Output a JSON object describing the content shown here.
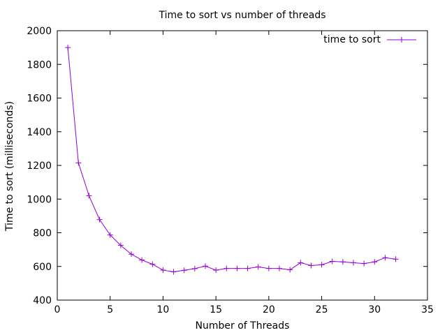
{
  "chart_data": {
    "type": "line",
    "title": "Time to sort vs number of threads",
    "xlabel": "Number of Threads",
    "ylabel": "Time to sort (milliseconds)",
    "xlim": [
      0,
      35
    ],
    "ylim": [
      400,
      2000
    ],
    "xticks": [
      0,
      5,
      10,
      15,
      20,
      25,
      30,
      35
    ],
    "yticks": [
      400,
      600,
      800,
      1000,
      1200,
      1400,
      1600,
      1800,
      2000
    ],
    "grid": false,
    "legend_position": "top-right",
    "series": [
      {
        "name": "time to sort",
        "color": "#9400D3",
        "marker": "plus",
        "x": [
          1,
          2,
          3,
          4,
          5,
          6,
          7,
          8,
          9,
          10,
          11,
          12,
          13,
          14,
          15,
          16,
          17,
          18,
          19,
          20,
          21,
          22,
          23,
          24,
          25,
          26,
          27,
          28,
          29,
          30,
          31,
          32
        ],
        "y": [
          1900,
          1215,
          1020,
          878,
          787,
          725,
          673,
          638,
          613,
          578,
          568,
          577,
          587,
          602,
          578,
          588,
          588,
          588,
          597,
          588,
          588,
          580,
          622,
          605,
          610,
          630,
          627,
          622,
          617,
          627,
          652,
          643
        ]
      }
    ]
  }
}
